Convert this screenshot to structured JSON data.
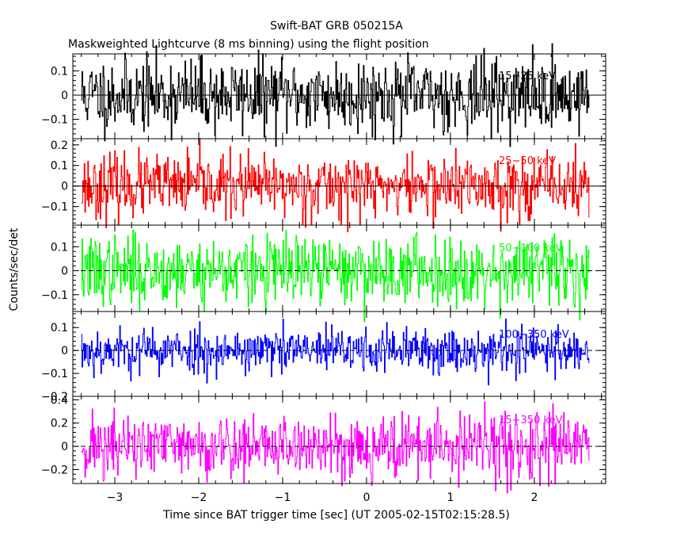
{
  "chart_data": {
    "type": "line",
    "title": "Swift-BAT GRB 050215A",
    "subtitle": "Maskweighted Lightcurve (8 ms binning) using the flight position",
    "xlabel": "Time since BAT trigger time [sec] (UT 2005-02-15T02:15:28.5)",
    "ylabel": "Counts/sec/det",
    "xlim": [
      -3.5,
      2.85
    ],
    "x_ticks": [
      -3,
      -2,
      -1,
      0,
      1,
      2
    ],
    "x_tick_labels": [
      "−3",
      "−2",
      "−1",
      "0",
      "1",
      "2"
    ],
    "data_range": [
      -3.4,
      2.65
    ],
    "bin_width_s": 0.008,
    "panels": [
      {
        "name": "15-25 keV",
        "band_label": "15−25 keV",
        "color": "#000000",
        "ylim": [
          -0.18,
          0.17
        ],
        "y_ticks": [
          -0.1,
          0,
          0.1
        ],
        "y_tick_labels": [
          "−0.1",
          "0",
          "0.1"
        ],
        "amplitude": 0.075,
        "seed": 11
      },
      {
        "name": "25-50 keV",
        "band_label": "25−50 keV",
        "color": "#ff0000",
        "ylim": [
          -0.19,
          0.23
        ],
        "y_ticks": [
          -0.1,
          0,
          0.1,
          0.2
        ],
        "y_tick_labels": [
          "−0.1",
          "0",
          "0.1",
          "0.2"
        ],
        "amplitude": 0.075,
        "seed": 23
      },
      {
        "name": "50-100 keV",
        "band_label": "50−100 keV",
        "color": "#00ff00",
        "ylim": [
          -0.17,
          0.19
        ],
        "y_ticks": [
          -0.1,
          0,
          0.1
        ],
        "y_tick_labels": [
          "−0.1",
          "0",
          "0.1"
        ],
        "amplitude": 0.07,
        "seed": 37
      },
      {
        "name": "100-350 keV",
        "band_label": "100−350 keV",
        "color": "#0000ff",
        "ylim": [
          -0.2,
          0.17
        ],
        "y_ticks": [
          -0.2,
          -0.1,
          0,
          0.1
        ],
        "y_tick_labels": [
          "−0.2",
          "−0.1",
          "0",
          "0.1"
        ],
        "amplitude": 0.05,
        "seed": 53
      },
      {
        "name": "15-350 keV",
        "band_label": "15−350 keV",
        "color": "#ff00ff",
        "ylim": [
          -0.32,
          0.43
        ],
        "y_ticks": [
          -0.2,
          0,
          0.2,
          0.4
        ],
        "y_tick_labels": [
          "−0.2",
          "0",
          "0.2",
          "0.4"
        ],
        "amplitude": 0.14,
        "seed": 71
      }
    ]
  }
}
